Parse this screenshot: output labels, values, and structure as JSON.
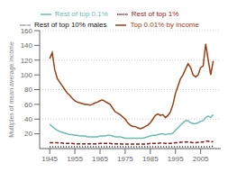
{
  "chart_data": {
    "type": "line",
    "ylabel": "Multiples of mean average income",
    "x": [
      1945,
      1946,
      1947,
      1948,
      1949,
      1950,
      1951,
      1952,
      1953,
      1954,
      1955,
      1956,
      1957,
      1958,
      1959,
      1960,
      1961,
      1962,
      1963,
      1964,
      1965,
      1966,
      1967,
      1968,
      1969,
      1970,
      1971,
      1972,
      1973,
      1974,
      1975,
      1976,
      1977,
      1978,
      1979,
      1980,
      1981,
      1982,
      1983,
      1984,
      1985,
      1986,
      1987,
      1988,
      1989,
      1990,
      1991,
      1992,
      1993,
      1994,
      1995,
      1996,
      1997,
      1998,
      1999,
      2000,
      2001,
      2002,
      2003,
      2004,
      2005,
      2006,
      2007,
      2008,
      2009,
      2010
    ],
    "xlim": [
      1941,
      2013
    ],
    "xticks": [
      1945,
      1955,
      1965,
      1975,
      1985,
      1995,
      2005
    ],
    "ylim": [
      0,
      160
    ],
    "yticks": [
      20,
      40,
      60,
      80,
      100,
      120,
      140,
      160
    ],
    "grid": true,
    "legend": "top",
    "series": [
      {
        "name": "Top 0.01% by income",
        "color": "#9B3D10",
        "line_style": "solid",
        "values": [
          122,
          130,
          107,
          95,
          90,
          85,
          80,
          75,
          72,
          68,
          65,
          63,
          62,
          61,
          60,
          60,
          59,
          60,
          62,
          63,
          65,
          66,
          64,
          62,
          60,
          55,
          50,
          48,
          46,
          43,
          40,
          35,
          32,
          30,
          30,
          28,
          27,
          28,
          30,
          32,
          35,
          40,
          45,
          47,
          45,
          46,
          42,
          45,
          50,
          60,
          75,
          85,
          95,
          100,
          108,
          115,
          110,
          100,
          97,
          100,
          110,
          112,
          142,
          120,
          100,
          119
        ]
      },
      {
        "name": "Rest of top 0.1%",
        "color": "#6ABCB0",
        "line_style": "solid",
        "values": [
          33,
          30,
          27,
          25,
          23,
          22,
          21,
          20,
          19,
          19,
          18,
          18,
          17,
          17,
          17,
          16,
          16,
          16,
          16,
          16,
          17,
          17,
          17,
          18,
          18,
          17,
          16,
          16,
          16,
          15,
          14,
          14,
          14,
          14,
          14,
          14,
          14,
          14,
          15,
          16,
          17,
          18,
          18,
          19,
          20,
          20,
          19,
          20,
          20,
          21,
          25,
          28,
          32,
          35,
          38,
          38,
          35,
          34,
          34,
          35,
          37,
          38,
          42,
          44,
          42,
          46
        ]
      },
      {
        "name": "Rest of top 1%",
        "color": "#8B1A1A",
        "line_style": "dashed",
        "values": [
          8,
          8,
          8,
          8,
          7.5,
          7.5,
          7,
          7,
          7,
          7,
          6.5,
          6.5,
          6.5,
          6.5,
          6.5,
          6.5,
          6.5,
          6.5,
          6.5,
          6.5,
          7,
          7,
          7,
          7,
          7,
          6.5,
          6.5,
          6.5,
          6.5,
          6,
          6,
          6,
          6,
          6,
          6,
          6,
          6,
          6,
          6,
          6.5,
          7,
          7,
          7,
          7,
          7.5,
          7.5,
          7,
          7,
          7,
          7.5,
          8,
          8,
          8.5,
          9,
          9,
          9,
          8.5,
          8,
          8,
          8.5,
          9,
          9,
          10,
          10,
          9,
          9.5
        ]
      },
      {
        "name": "Rest of top 10% males",
        "color": "#111111",
        "line_style": "dotted",
        "values": [
          2.5,
          2.5,
          2.5,
          2.5,
          2.5,
          2.5,
          2.5,
          2.5,
          2.5,
          2.5,
          2.5,
          2.5,
          2.5,
          2.5,
          2.5,
          2.5,
          2.5,
          2.5,
          2.5,
          2.5,
          2.5,
          2.5,
          2.5,
          2.5,
          2.5,
          2.5,
          2.5,
          2.5,
          2.5,
          2.5,
          2.5,
          2.5,
          2.5,
          2.5,
          2.5,
          2.5,
          2.5,
          2.5,
          2.5,
          2.5,
          2.5,
          2.5,
          2.5,
          2.5,
          2.5,
          2.5,
          2.5,
          2.5,
          2.5,
          2.5,
          2.5,
          2.5,
          2.5,
          2.5,
          2.5,
          2.5,
          2.5,
          2.5,
          2.5,
          2.5,
          2.5,
          2.5,
          2.5,
          2.5,
          2.5,
          3
        ]
      }
    ]
  }
}
